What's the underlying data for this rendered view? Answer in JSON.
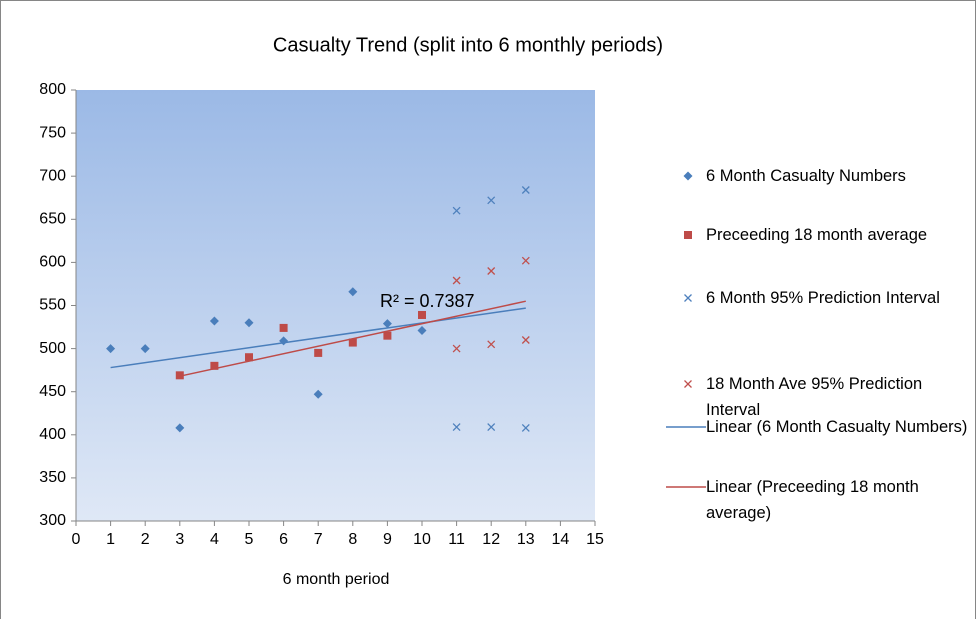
{
  "chart_data": {
    "type": "scatter",
    "title": "Casualty Trend (split into 6 monthly periods)",
    "x_label": "6 month period",
    "annotation": "R² = 0.7387",
    "xlim": [
      0,
      15
    ],
    "xticks": [
      0,
      1,
      2,
      3,
      4,
      5,
      6,
      7,
      8,
      9,
      10,
      11,
      12,
      13,
      14,
      15
    ],
    "ylim": [
      300,
      800
    ],
    "yticks": [
      300,
      350,
      400,
      450,
      500,
      550,
      600,
      650,
      700,
      750,
      800
    ],
    "legend": "right",
    "series": [
      {
        "name": "6 Month Casualty Numbers",
        "color": "#4a7ebb",
        "marker": "diamond",
        "x": [
          1,
          2,
          3,
          4,
          5,
          6,
          7,
          8,
          9,
          10
        ],
        "values": [
          500,
          500,
          408,
          532,
          530,
          509,
          447,
          566,
          529,
          521
        ]
      },
      {
        "name": "Preceeding 18 month average",
        "color": "#be4b48",
        "marker": "square",
        "x": [
          3,
          4,
          5,
          6,
          7,
          8,
          9,
          10
        ],
        "values": [
          469,
          480,
          490,
          524,
          495,
          507,
          515,
          539
        ]
      },
      {
        "name": "6 Month 95% Prediction Interval",
        "color": "#4f81bd",
        "marker": "x",
        "x": [
          11,
          12,
          13,
          11,
          12,
          13
        ],
        "values": [
          660,
          672,
          684,
          409,
          409,
          408
        ]
      },
      {
        "name": "18 Month Ave 95% Prediction Interval",
        "color": "#c0504d",
        "marker": "x",
        "x": [
          11,
          12,
          13,
          11,
          12,
          13
        ],
        "values": [
          579,
          590,
          602,
          500,
          505,
          510
        ]
      },
      {
        "name": "Linear (6 Month Casualty Numbers)",
        "color": "#4a7ebb",
        "marker": "line",
        "x": [
          1,
          13
        ],
        "values": [
          478,
          547
        ]
      },
      {
        "name": "Linear (Preceeding 18 month average)",
        "color": "#be4b48",
        "marker": "line",
        "x": [
          3,
          13
        ],
        "values": [
          468,
          555
        ]
      }
    ]
  }
}
